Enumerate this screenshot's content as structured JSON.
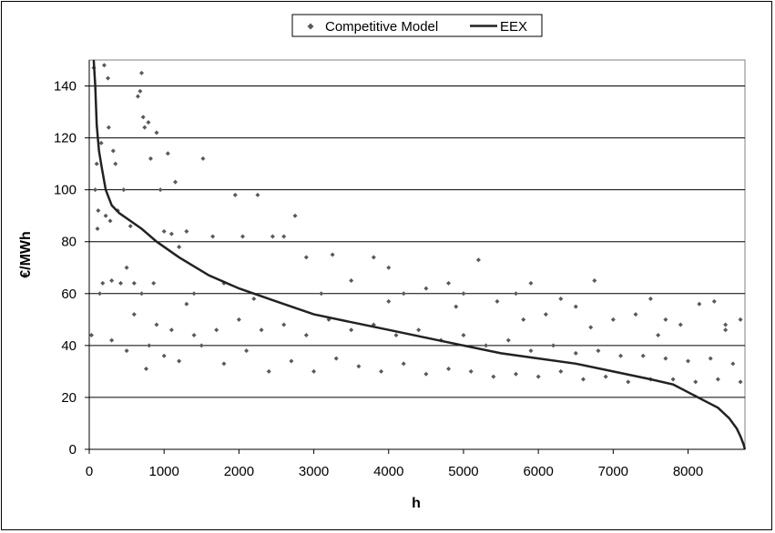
{
  "chart_data": {
    "type": "scatter",
    "title": "",
    "xlabel": "h",
    "ylabel": "€/MWh",
    "xlim": [
      0,
      8760
    ],
    "ylim": [
      0,
      150
    ],
    "x_ticks": [
      0,
      1000,
      2000,
      3000,
      4000,
      5000,
      6000,
      7000,
      8000
    ],
    "y_ticks": [
      0,
      20,
      40,
      60,
      80,
      100,
      120,
      140
    ],
    "grid": "horizontal",
    "legend_position": "top-center",
    "colors": {
      "scatter": "#595959",
      "line": "#222222",
      "grid": "#000000"
    },
    "series": [
      {
        "name": "Competitive Model",
        "kind": "scatter",
        "marker": "diamond",
        "note_points": "representative sample of the dense hourly cloud",
        "points": [
          [
            30,
            44
          ],
          [
            60,
            147
          ],
          [
            80,
            100
          ],
          [
            100,
            110
          ],
          [
            110,
            85
          ],
          [
            120,
            92
          ],
          [
            140,
            60
          ],
          [
            160,
            118
          ],
          [
            180,
            64
          ],
          [
            200,
            148
          ],
          [
            220,
            90
          ],
          [
            250,
            143
          ],
          [
            260,
            124
          ],
          [
            280,
            88
          ],
          [
            300,
            65
          ],
          [
            320,
            115
          ],
          [
            350,
            110
          ],
          [
            380,
            92
          ],
          [
            420,
            64
          ],
          [
            460,
            100
          ],
          [
            500,
            70
          ],
          [
            550,
            86
          ],
          [
            600,
            64
          ],
          [
            650,
            136
          ],
          [
            680,
            138
          ],
          [
            700,
            145
          ],
          [
            720,
            128
          ],
          [
            740,
            124
          ],
          [
            760,
            31
          ],
          [
            790,
            126
          ],
          [
            820,
            112
          ],
          [
            860,
            64
          ],
          [
            900,
            122
          ],
          [
            950,
            100
          ],
          [
            1000,
            84
          ],
          [
            1050,
            114
          ],
          [
            1100,
            83
          ],
          [
            1150,
            103
          ],
          [
            1200,
            78
          ],
          [
            1300,
            84
          ],
          [
            1400,
            60
          ],
          [
            1520,
            112
          ],
          [
            1650,
            82
          ],
          [
            1800,
            64
          ],
          [
            1950,
            98
          ],
          [
            2050,
            82
          ],
          [
            2250,
            98
          ],
          [
            2450,
            82
          ],
          [
            2600,
            82
          ],
          [
            2750,
            90
          ],
          [
            2900,
            74
          ],
          [
            3250,
            75
          ],
          [
            3500,
            65
          ],
          [
            3800,
            74
          ],
          [
            4000,
            70
          ],
          [
            4200,
            60
          ],
          [
            4500,
            62
          ],
          [
            4800,
            64
          ],
          [
            5000,
            60
          ],
          [
            5200,
            73
          ],
          [
            5450,
            57
          ],
          [
            5700,
            60
          ],
          [
            5900,
            64
          ],
          [
            6100,
            52
          ],
          [
            6300,
            58
          ],
          [
            6500,
            55
          ],
          [
            6750,
            65
          ],
          [
            7000,
            50
          ],
          [
            7300,
            52
          ],
          [
            7500,
            58
          ],
          [
            7700,
            50
          ],
          [
            7900,
            48
          ],
          [
            8150,
            56
          ],
          [
            8350,
            57
          ],
          [
            8500,
            48
          ],
          [
            8700,
            50
          ],
          [
            300,
            42
          ],
          [
            500,
            38
          ],
          [
            800,
            40
          ],
          [
            1000,
            36
          ],
          [
            1200,
            34
          ],
          [
            1500,
            40
          ],
          [
            1800,
            33
          ],
          [
            2100,
            38
          ],
          [
            2400,
            30
          ],
          [
            2700,
            34
          ],
          [
            3000,
            30
          ],
          [
            3300,
            35
          ],
          [
            3600,
            32
          ],
          [
            3900,
            30
          ],
          [
            4200,
            33
          ],
          [
            4500,
            29
          ],
          [
            4800,
            31
          ],
          [
            5100,
            30
          ],
          [
            5400,
            28
          ],
          [
            5700,
            29
          ],
          [
            6000,
            28
          ],
          [
            6300,
            30
          ],
          [
            6600,
            27
          ],
          [
            6900,
            28
          ],
          [
            7200,
            26
          ],
          [
            7500,
            27
          ],
          [
            7800,
            27
          ],
          [
            8100,
            26
          ],
          [
            8400,
            27
          ],
          [
            8700,
            26
          ],
          [
            600,
            52
          ],
          [
            900,
            48
          ],
          [
            1100,
            46
          ],
          [
            1400,
            44
          ],
          [
            1700,
            46
          ],
          [
            2000,
            50
          ],
          [
            2300,
            46
          ],
          [
            2600,
            48
          ],
          [
            2900,
            44
          ],
          [
            3200,
            50
          ],
          [
            3500,
            46
          ],
          [
            3800,
            48
          ],
          [
            4100,
            44
          ],
          [
            4400,
            46
          ],
          [
            4700,
            42
          ],
          [
            5000,
            44
          ],
          [
            5300,
            40
          ],
          [
            5600,
            42
          ],
          [
            5900,
            38
          ],
          [
            6200,
            40
          ],
          [
            6500,
            37
          ],
          [
            6800,
            38
          ],
          [
            7100,
            36
          ],
          [
            7400,
            36
          ],
          [
            7700,
            35
          ],
          [
            8000,
            34
          ],
          [
            8300,
            35
          ],
          [
            8600,
            33
          ],
          [
            700,
            60
          ],
          [
            1300,
            56
          ],
          [
            2200,
            58
          ],
          [
            3100,
            60
          ],
          [
            4000,
            57
          ],
          [
            4900,
            55
          ],
          [
            5800,
            50
          ],
          [
            6700,
            47
          ],
          [
            7600,
            44
          ],
          [
            8500,
            46
          ]
        ]
      },
      {
        "name": "EEX",
        "kind": "line",
        "x": [
          60,
          80,
          100,
          130,
          170,
          220,
          300,
          400,
          550,
          700,
          900,
          1200,
          1600,
          2000,
          2500,
          3000,
          3500,
          4000,
          4500,
          5000,
          5500,
          6000,
          6500,
          7000,
          7500,
          7800,
          8000,
          8200,
          8400,
          8550,
          8650,
          8700,
          8740,
          8760
        ],
        "y": [
          150,
          140,
          125,
          115,
          108,
          100,
          94,
          91,
          88,
          85,
          80,
          74,
          67,
          62,
          57,
          52,
          49,
          46,
          43,
          40,
          37,
          35,
          33,
          30,
          27,
          25,
          22,
          19,
          16,
          12,
          8,
          5,
          2,
          0
        ]
      }
    ]
  }
}
